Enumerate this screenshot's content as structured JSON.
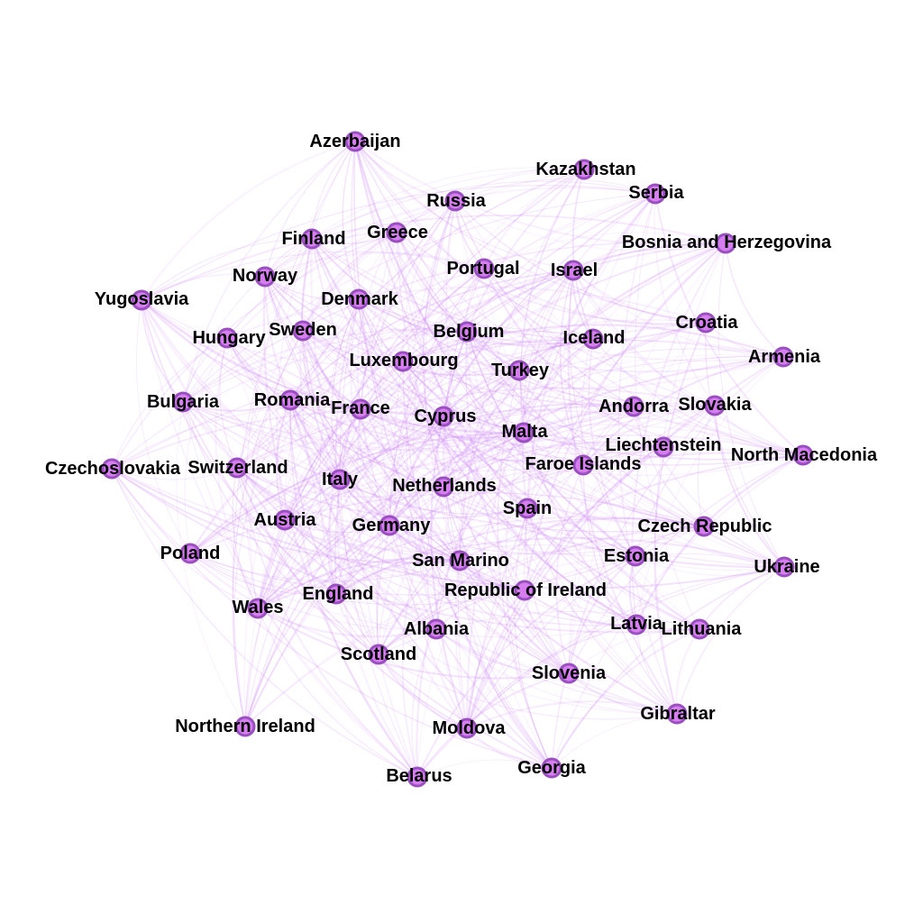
{
  "colors": {
    "node_fill": "#d67ef0",
    "node_stroke": "#9a4fc0",
    "edge": "#cc80f5",
    "label": "#000000",
    "background": "#ffffff"
  },
  "nodes": [
    {
      "id": "azerbaijan",
      "label": "Azerbaijan"
    },
    {
      "id": "kazakhstan",
      "label": "Kazakhstan"
    },
    {
      "id": "serbia",
      "label": "Serbia"
    },
    {
      "id": "russia",
      "label": "Russia"
    },
    {
      "id": "finland",
      "label": "Finland"
    },
    {
      "id": "greece",
      "label": "Greece"
    },
    {
      "id": "bosnia",
      "label": "Bosnia and Herzegovina"
    },
    {
      "id": "portugal",
      "label": "Portugal"
    },
    {
      "id": "israel",
      "label": "Israel"
    },
    {
      "id": "norway",
      "label": "Norway"
    },
    {
      "id": "yugoslavia",
      "label": "Yugoslavia"
    },
    {
      "id": "denmark",
      "label": "Denmark"
    },
    {
      "id": "croatia",
      "label": "Croatia"
    },
    {
      "id": "hungary",
      "label": "Hungary"
    },
    {
      "id": "sweden",
      "label": "Sweden"
    },
    {
      "id": "belgium",
      "label": "Belgium"
    },
    {
      "id": "iceland",
      "label": "Iceland"
    },
    {
      "id": "armenia",
      "label": "Armenia"
    },
    {
      "id": "luxembourg",
      "label": "Luxembourg"
    },
    {
      "id": "turkey",
      "label": "Turkey"
    },
    {
      "id": "bulgaria",
      "label": "Bulgaria"
    },
    {
      "id": "romania",
      "label": "Romania"
    },
    {
      "id": "france",
      "label": "France"
    },
    {
      "id": "cyprus",
      "label": "Cyprus"
    },
    {
      "id": "andorra",
      "label": "Andorra"
    },
    {
      "id": "slovakia",
      "label": "Slovakia"
    },
    {
      "id": "malta",
      "label": "Malta"
    },
    {
      "id": "liechtenstein",
      "label": "Liechtenstein"
    },
    {
      "id": "north_macedonia",
      "label": "North Macedonia"
    },
    {
      "id": "czechoslovakia",
      "label": "Czechoslovakia"
    },
    {
      "id": "switzerland",
      "label": "Switzerland"
    },
    {
      "id": "faroe",
      "label": "Faroe Islands"
    },
    {
      "id": "italy",
      "label": "Italy"
    },
    {
      "id": "netherlands",
      "label": "Netherlands"
    },
    {
      "id": "spain",
      "label": "Spain"
    },
    {
      "id": "austria",
      "label": "Austria"
    },
    {
      "id": "germany",
      "label": "Germany"
    },
    {
      "id": "czech",
      "label": "Czech Republic"
    },
    {
      "id": "poland",
      "label": "Poland"
    },
    {
      "id": "estonia",
      "label": "Estonia"
    },
    {
      "id": "san_marino",
      "label": "San Marino"
    },
    {
      "id": "ukraine",
      "label": "Ukraine"
    },
    {
      "id": "ireland",
      "label": "Republic of Ireland"
    },
    {
      "id": "wales",
      "label": "Wales"
    },
    {
      "id": "england",
      "label": "England"
    },
    {
      "id": "latvia",
      "label": "Latvia"
    },
    {
      "id": "lithuania",
      "label": "Lithuania"
    },
    {
      "id": "albania",
      "label": "Albania"
    },
    {
      "id": "scotland",
      "label": "Scotland"
    },
    {
      "id": "slovenia",
      "label": "Slovenia"
    },
    {
      "id": "gibraltar",
      "label": "Gibraltar"
    },
    {
      "id": "northern_ireland",
      "label": "Northern Ireland"
    },
    {
      "id": "moldova",
      "label": "Moldova"
    },
    {
      "id": "georgia",
      "label": "Georgia"
    },
    {
      "id": "belarus",
      "label": "Belarus"
    }
  ]
}
